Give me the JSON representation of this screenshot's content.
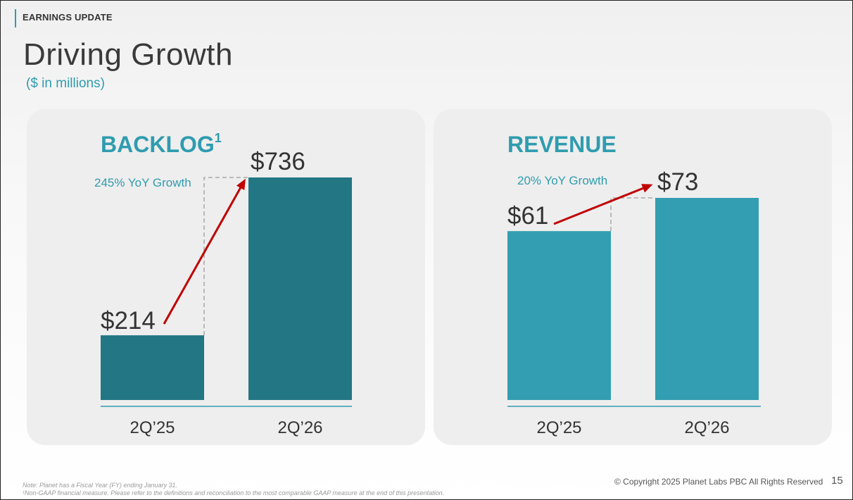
{
  "header": {
    "section_tag": "EARNINGS UPDATE",
    "title": "Driving Growth",
    "subtitle": "($ in millions)"
  },
  "colors": {
    "accent": "#2f9caf",
    "backlog_bar": "#237684",
    "revenue_bar": "#339eb1",
    "arrow": "#c00000",
    "title_text": "#3a3a3a"
  },
  "chart_data": [
    {
      "type": "bar",
      "title": "BACKLOG",
      "title_superscript": "1",
      "categories": [
        "2Q’25",
        "2Q’26"
      ],
      "values": [
        214,
        736
      ],
      "value_labels": [
        "$214",
        "$736"
      ],
      "growth_label": "245% YoY Growth",
      "ylim": [
        0,
        736
      ]
    },
    {
      "type": "bar",
      "title": "REVENUE",
      "title_superscript": "",
      "categories": [
        "2Q’25",
        "2Q’26"
      ],
      "values": [
        61,
        73
      ],
      "value_labels": [
        "$61",
        "$73"
      ],
      "growth_label": "20% YoY Growth",
      "ylim": [
        0,
        73
      ]
    }
  ],
  "footer": {
    "note_1": "Note: Planet has a Fiscal Year (FY) ending January 31.",
    "note_2": "¹Non-GAAP financial measure. Please refer to the definitions and reconciliation to the most comparable GAAP measure at the end of this presentation.",
    "copyright": "© Copyright 2025 Planet Labs PBC  All Rights Reserved",
    "page_number": "15"
  }
}
